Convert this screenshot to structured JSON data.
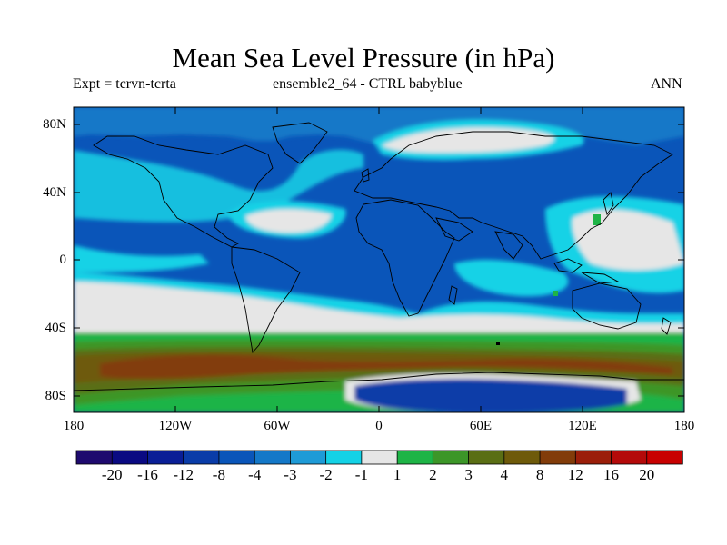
{
  "title": "Mean Sea Level Pressure (in hPa)",
  "subtitle_left": "Expt = tcrvn-tcrta",
  "subtitle_center": "ensemble2_64 - CTRL babyblue",
  "subtitle_right": "ANN",
  "lat_ticks": [
    "80N",
    "40N",
    "0",
    "40S",
    "80S"
  ],
  "lon_ticks": [
    "180",
    "120W",
    "60W",
    "0",
    "60E",
    "120E",
    "180"
  ],
  "colorbar": {
    "labels": [
      "-20",
      "-16",
      "-12",
      "-8",
      "-4",
      "-3",
      "-2",
      "-1",
      "1",
      "2",
      "3",
      "4",
      "8",
      "12",
      "16",
      "20"
    ],
    "colors": [
      "#1e0a6e",
      "#0a0a82",
      "#0a1e96",
      "#0a3ca8",
      "#0a55b9",
      "#1478c8",
      "#1e9bd7",
      "#14d2e6",
      "#e6e6e6",
      "#1eb446",
      "#3c9628",
      "#5a6e14",
      "#6e5a0a",
      "#823c0a",
      "#9b1e0a",
      "#b40a0a",
      "#c80000"
    ]
  },
  "colors": {
    "ocean_base": "#0a55b9",
    "land_outline": "#000000"
  }
}
